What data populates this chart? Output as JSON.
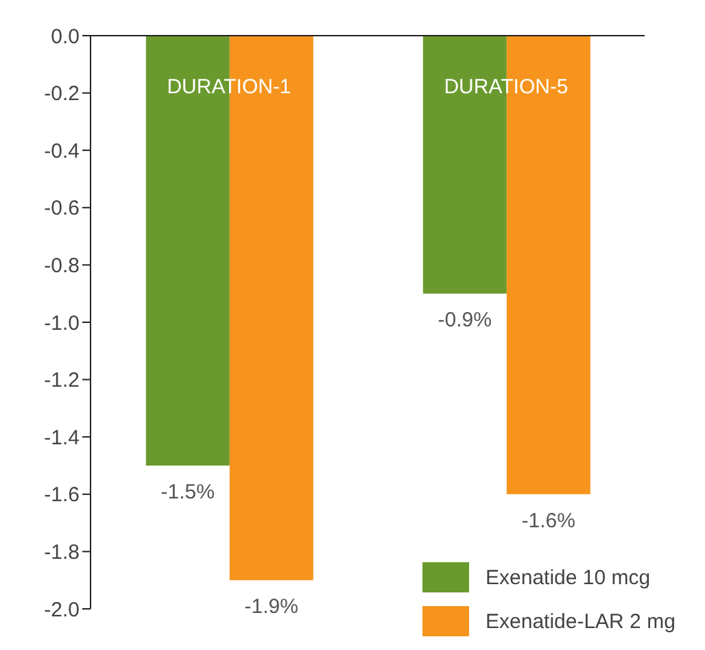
{
  "chart_data": {
    "type": "bar",
    "categories": [
      "DURATION-1",
      "DURATION-5"
    ],
    "series": [
      {
        "name": "Exenatide 10 mcg",
        "color": "#6a9a2e",
        "values": [
          -1.5,
          -0.9
        ],
        "value_labels": [
          "-1.5%",
          "-0.9%"
        ]
      },
      {
        "name": "Exenatide-LAR 2 mg",
        "color": "#f7941d",
        "values": [
          -1.9,
          -1.6
        ],
        "value_labels": [
          "-1.9%",
          "-1.6%"
        ]
      }
    ],
    "ylim": [
      -2.0,
      0.0
    ],
    "yticks": [
      {
        "value": 0,
        "label": "0.0"
      },
      {
        "value": -0.2,
        "label": "-0.2"
      },
      {
        "value": -0.4,
        "label": "-0.4"
      },
      {
        "value": -0.6,
        "label": "-0.6"
      },
      {
        "value": -0.8,
        "label": "-0.8"
      },
      {
        "value": -1.0,
        "label": "-1.0"
      },
      {
        "value": -1.2,
        "label": "-1.2"
      },
      {
        "value": -1.4,
        "label": "-1.4"
      },
      {
        "value": -1.6,
        "label": "-1.6"
      },
      {
        "value": -1.8,
        "label": "-1.8"
      },
      {
        "value": -2.0,
        "label": "-2.0"
      }
    ],
    "grid": false,
    "legend": "bottom right"
  }
}
